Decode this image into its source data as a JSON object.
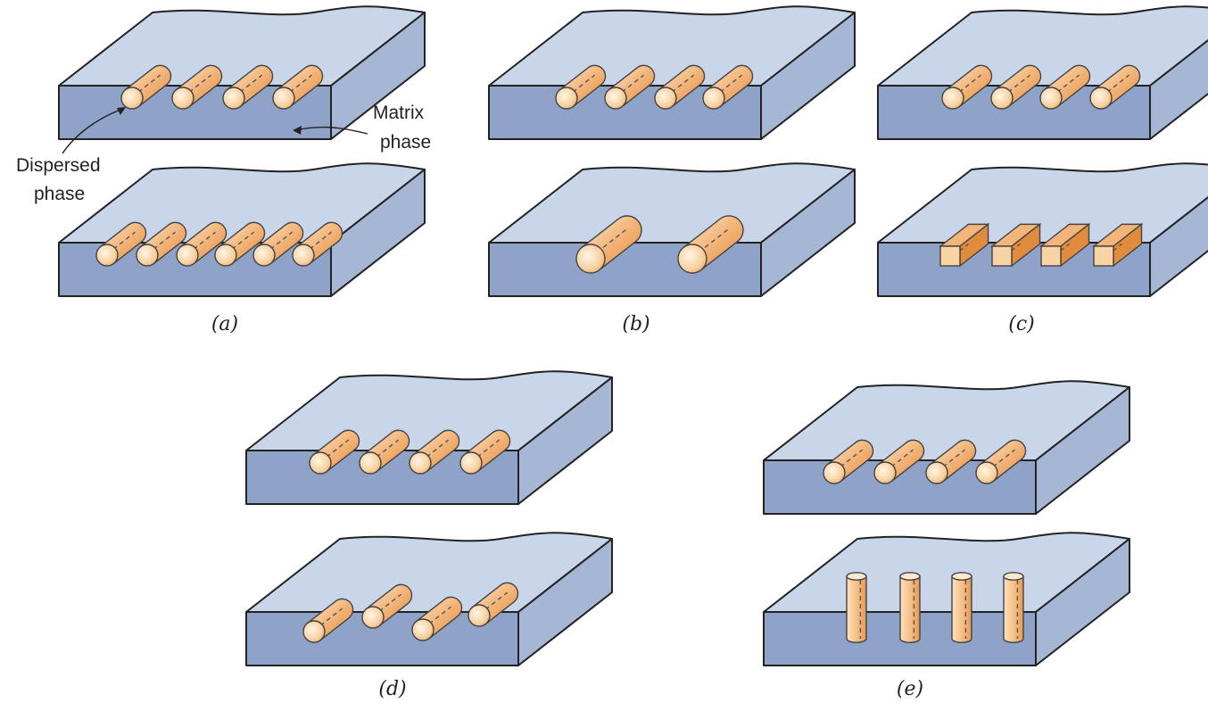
{
  "figure": {
    "panels": [
      {
        "id": "a",
        "label": "(a)",
        "top": "aligned",
        "bottom": "aligned-closer-spacing"
      },
      {
        "id": "b",
        "label": "(b)",
        "top": "aligned-small-fibers",
        "bottom": "aligned-large-fibers"
      },
      {
        "id": "c",
        "label": "(c)",
        "top": "circular-cross-section",
        "bottom": "square-cross-section"
      },
      {
        "id": "d",
        "label": "(d)",
        "top": "uniform-distribution",
        "bottom": "random-distribution"
      },
      {
        "id": "e",
        "label": "(e)",
        "top": "parallel-orientation",
        "bottom": "perpendicular-orientation"
      }
    ],
    "annotations": {
      "matrix_line1": "Matrix",
      "matrix_line2": "phase",
      "dispersed_line1": "Dispersed",
      "dispersed_line2": "phase"
    },
    "colors": {
      "matrix_top": "#c9d6ea",
      "matrix_front": "#8ea3c7",
      "matrix_side": "#a5b7d5",
      "fiber_light": "#fbe3c2",
      "fiber_mid": "#f3b57a",
      "fiber_dark": "#e08b3d",
      "outline": "#222222"
    }
  }
}
